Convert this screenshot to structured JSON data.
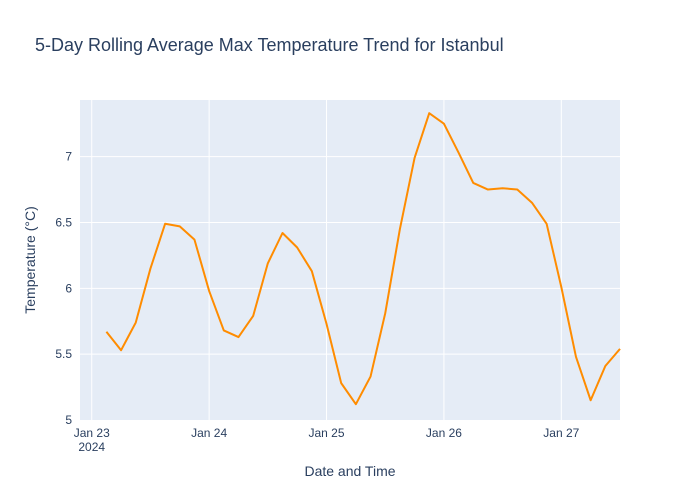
{
  "chart_data": {
    "type": "line",
    "title": "5-Day Rolling Average Max Temperature Trend for Istanbul",
    "xlabel": "Date and Time",
    "ylabel": "Temperature (°C)",
    "x_tick_labels": [
      "Jan 23",
      "Jan 24",
      "Jan 25",
      "Jan 26",
      "Jan 27"
    ],
    "x_tick_sublabel": "2024",
    "x_ticks": [
      "2024-01-23 00:00",
      "2024-01-24 00:00",
      "2024-01-25 00:00",
      "2024-01-26 00:00",
      "2024-01-27 00:00"
    ],
    "xlim": [
      "2024-01-22 21:36",
      "2024-01-27 12:00"
    ],
    "y_ticks": [
      5,
      5.5,
      6,
      6.5,
      7
    ],
    "y_tick_labels": [
      "5",
      "5.5",
      "6",
      "6.5",
      "7"
    ],
    "ylim": [
      5,
      7.43
    ],
    "grid": true,
    "colors": {
      "line": "#ff8c00",
      "plot_bg": "#e5ecf6",
      "grid": "#ffffff",
      "text": "#2a3f5f"
    },
    "series": [
      {
        "x": [
          "2024-01-23 03:00",
          "2024-01-23 06:00",
          "2024-01-23 09:00",
          "2024-01-23 12:00",
          "2024-01-23 15:00",
          "2024-01-23 18:00",
          "2024-01-23 21:00",
          "2024-01-24 00:00",
          "2024-01-24 03:00",
          "2024-01-24 06:00",
          "2024-01-24 09:00",
          "2024-01-24 12:00",
          "2024-01-24 15:00",
          "2024-01-24 18:00",
          "2024-01-24 21:00",
          "2024-01-25 00:00",
          "2024-01-25 03:00",
          "2024-01-25 06:00",
          "2024-01-25 09:00",
          "2024-01-25 12:00",
          "2024-01-25 15:00",
          "2024-01-25 18:00",
          "2024-01-25 21:00",
          "2024-01-26 00:00",
          "2024-01-26 03:00",
          "2024-01-26 06:00",
          "2024-01-26 09:00",
          "2024-01-26 12:00",
          "2024-01-26 15:00",
          "2024-01-26 18:00",
          "2024-01-26 21:00",
          "2024-01-27 00:00",
          "2024-01-27 03:00",
          "2024-01-27 06:00",
          "2024-01-27 09:00",
          "2024-01-27 12:00"
        ],
        "values": [
          5.67,
          5.53,
          5.74,
          6.15,
          6.49,
          6.47,
          6.37,
          5.98,
          5.68,
          5.63,
          5.79,
          6.19,
          6.42,
          6.31,
          6.13,
          5.73,
          5.28,
          5.12,
          5.33,
          5.81,
          6.45,
          6.99,
          7.33,
          7.25,
          7.03,
          6.8,
          6.75,
          6.76,
          6.75,
          6.65,
          6.49,
          6.01,
          5.48,
          5.15,
          5.41,
          5.54
        ]
      }
    ]
  }
}
